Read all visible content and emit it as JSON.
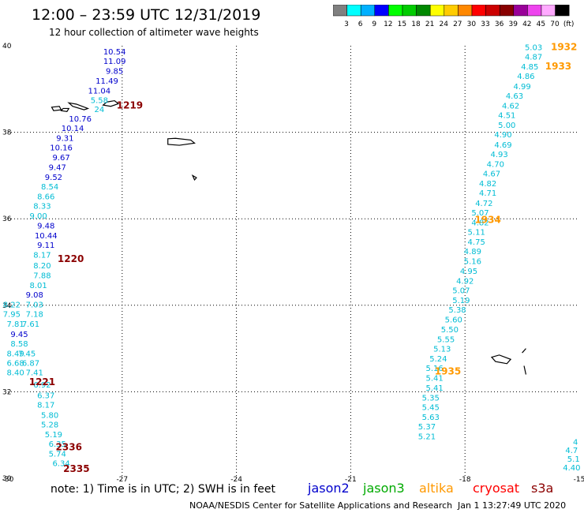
{
  "header": {
    "title": "12:00 – 23:59 UTC 12/31/2019",
    "subtitle": "12 hour collection of altimeter wave heights"
  },
  "colorbar": {
    "colors": [
      "#808080",
      "#00ffff",
      "#00b0ff",
      "#0000ff",
      "#00ff00",
      "#00cc00",
      "#008800",
      "#ffff00",
      "#ffcc00",
      "#ff8800",
      "#ff0000",
      "#cc0000",
      "#880000",
      "#990099",
      "#ee44ee",
      "#ffaaff",
      "#000000"
    ],
    "labels": [
      "3",
      "6",
      "9",
      "12",
      "15",
      "18",
      "21",
      "24",
      "27",
      "30",
      "33",
      "36",
      "39",
      "42",
      "45",
      "70",
      "(ft)"
    ]
  },
  "chart_data": {
    "type": "scatter",
    "title": "12 hour collection of altimeter wave heights",
    "x_ticks": [
      "-30",
      "-27",
      "-24",
      "-21",
      "-18",
      "-15"
    ],
    "y_ticks": [
      "40",
      "38",
      "36",
      "34",
      "32",
      "30"
    ],
    "xlim": [
      -30,
      -15
    ],
    "ylim": [
      30,
      40
    ],
    "grid": true,
    "time_labels": [
      {
        "text": "1219",
        "lon": -26.8,
        "lat": 38.55,
        "color": "#8b0000"
      },
      {
        "text": "1220",
        "lon": -28.35,
        "lat": 35.0,
        "color": "#8b0000"
      },
      {
        "text": "1221",
        "lon": -29.1,
        "lat": 32.15,
        "color": "#8b0000"
      },
      {
        "text": "2336",
        "lon": -28.4,
        "lat": 30.65,
        "color": "#8b0000"
      },
      {
        "text": "2335",
        "lon": -28.2,
        "lat": 30.15,
        "color": "#8b0000"
      },
      {
        "text": "1932",
        "lon": -15.4,
        "lat": 39.9,
        "color": "#ff9900"
      },
      {
        "text": "1933",
        "lon": -15.55,
        "lat": 39.45,
        "color": "#ff9900"
      },
      {
        "text": "1934",
        "lon": -17.4,
        "lat": 35.9,
        "color": "#ff9900"
      },
      {
        "text": "1935",
        "lon": -18.45,
        "lat": 32.4,
        "color": "#ff9900"
      }
    ],
    "series": [
      {
        "points": [
          {
            "lon": -27.2,
            "lat": 39.8,
            "v": "10.54",
            "c": "#0000cc"
          },
          {
            "lon": -27.2,
            "lat": 39.58,
            "v": "11.09",
            "c": "#0000cc"
          },
          {
            "lon": -27.2,
            "lat": 39.35,
            "v": "9.85",
            "c": "#0000cc"
          },
          {
            "lon": -27.4,
            "lat": 39.12,
            "v": "11.49",
            "c": "#0000cc"
          },
          {
            "lon": -27.6,
            "lat": 38.9,
            "v": "11.04",
            "c": "#0000cc"
          },
          {
            "lon": -27.6,
            "lat": 38.68,
            "v": "5.58",
            "c": "#00bcd4"
          },
          {
            "lon": -27.6,
            "lat": 38.47,
            "v": "24",
            "c": "#00bcd4"
          },
          {
            "lon": -28.1,
            "lat": 38.25,
            "v": "10.76",
            "c": "#0000cc"
          },
          {
            "lon": -28.3,
            "lat": 38.03,
            "v": "10.14",
            "c": "#0000cc"
          },
          {
            "lon": -28.5,
            "lat": 37.8,
            "v": "9.31",
            "c": "#0000cc"
          },
          {
            "lon": -28.6,
            "lat": 37.58,
            "v": "10.16",
            "c": "#0000cc"
          },
          {
            "lon": -28.6,
            "lat": 37.35,
            "v": "9.67",
            "c": "#0000cc"
          },
          {
            "lon": -28.7,
            "lat": 37.13,
            "v": "9.47",
            "c": "#0000cc"
          },
          {
            "lon": -28.8,
            "lat": 36.9,
            "v": "9.52",
            "c": "#0000cc"
          },
          {
            "lon": -28.9,
            "lat": 36.68,
            "v": "8.54",
            "c": "#00bcd4"
          },
          {
            "lon": -29.0,
            "lat": 36.45,
            "v": "8.66",
            "c": "#00bcd4"
          },
          {
            "lon": -29.1,
            "lat": 36.23,
            "v": "8.33",
            "c": "#00bcd4"
          },
          {
            "lon": -29.2,
            "lat": 36.0,
            "v": "9.00",
            "c": "#00bcd4"
          },
          {
            "lon": -29.0,
            "lat": 35.78,
            "v": "9.48",
            "c": "#0000cc"
          },
          {
            "lon": -29.0,
            "lat": 35.55,
            "v": "10.44",
            "c": "#0000cc"
          },
          {
            "lon": -29.0,
            "lat": 35.33,
            "v": "9.11",
            "c": "#0000cc"
          },
          {
            "lon": -29.1,
            "lat": 35.1,
            "v": "8.17",
            "c": "#00bcd4"
          },
          {
            "lon": -29.1,
            "lat": 34.85,
            "v": "8.20",
            "c": "#00bcd4"
          },
          {
            "lon": -29.1,
            "lat": 34.63,
            "v": "7.88",
            "c": "#00bcd4"
          },
          {
            "lon": -29.2,
            "lat": 34.4,
            "v": "8.01",
            "c": "#00bcd4"
          },
          {
            "lon": -29.3,
            "lat": 34.18,
            "v": "9.08",
            "c": "#0000cc"
          },
          {
            "lon": -29.9,
            "lat": 33.95,
            "v": "8.22",
            "c": "#00bcd4"
          },
          {
            "lon": -29.3,
            "lat": 33.95,
            "v": "7.03",
            "c": "#00bcd4"
          },
          {
            "lon": -29.9,
            "lat": 33.73,
            "v": "7.95",
            "c": "#00bcd4"
          },
          {
            "lon": -29.3,
            "lat": 33.73,
            "v": "7.18",
            "c": "#00bcd4"
          },
          {
            "lon": -29.8,
            "lat": 33.5,
            "v": "7.81",
            "c": "#00bcd4"
          },
          {
            "lon": -29.4,
            "lat": 33.5,
            "v": "7.61",
            "c": "#00bcd4"
          },
          {
            "lon": -29.7,
            "lat": 33.27,
            "v": "9.45",
            "c": "#0000cc"
          },
          {
            "lon": -29.7,
            "lat": 33.05,
            "v": "8.58",
            "c": "#00bcd4"
          },
          {
            "lon": -29.8,
            "lat": 32.82,
            "v": "8.49",
            "c": "#00bcd4"
          },
          {
            "lon": -29.5,
            "lat": 32.82,
            "v": "7.45",
            "c": "#00bcd4"
          },
          {
            "lon": -29.8,
            "lat": 32.6,
            "v": "6.68",
            "c": "#00bcd4"
          },
          {
            "lon": -29.4,
            "lat": 32.6,
            "v": "6.87",
            "c": "#00bcd4"
          },
          {
            "lon": -29.8,
            "lat": 32.38,
            "v": "8.40",
            "c": "#00bcd4"
          },
          {
            "lon": -29.3,
            "lat": 32.38,
            "v": "7.41",
            "c": "#00bcd4"
          },
          {
            "lon": -29.1,
            "lat": 32.1,
            "v": "6.92",
            "c": "#00bcd4"
          },
          {
            "lon": -29.0,
            "lat": 31.85,
            "v": "6.37",
            "c": "#00bcd4"
          },
          {
            "lon": -29.0,
            "lat": 31.63,
            "v": "8.17",
            "c": "#00bcd4"
          },
          {
            "lon": -28.9,
            "lat": 31.4,
            "v": "5.80",
            "c": "#00bcd4"
          },
          {
            "lon": -28.9,
            "lat": 31.18,
            "v": "5.28",
            "c": "#00bcd4"
          },
          {
            "lon": -28.8,
            "lat": 30.95,
            "v": "5.19",
            "c": "#00bcd4"
          },
          {
            "lon": -28.7,
            "lat": 30.73,
            "v": "6.35",
            "c": "#00bcd4"
          },
          {
            "lon": -28.7,
            "lat": 30.5,
            "v": "5.74",
            "c": "#00bcd4"
          },
          {
            "lon": -28.6,
            "lat": 30.28,
            "v": "6.34",
            "c": "#00bcd4"
          }
        ]
      },
      {
        "points": [
          {
            "lon": -16.2,
            "lat": 39.9,
            "v": "5.03",
            "c": "#00bcd4"
          },
          {
            "lon": -16.2,
            "lat": 39.68,
            "v": "4.87",
            "c": "#00bcd4"
          },
          {
            "lon": -16.3,
            "lat": 39.45,
            "v": "4.85",
            "c": "#00bcd4"
          },
          {
            "lon": -16.4,
            "lat": 39.23,
            "v": "4.86",
            "c": "#00bcd4"
          },
          {
            "lon": -16.5,
            "lat": 39.0,
            "v": "4.99",
            "c": "#00bcd4"
          },
          {
            "lon": -16.7,
            "lat": 38.78,
            "v": "4.63",
            "c": "#00bcd4"
          },
          {
            "lon": -16.8,
            "lat": 38.55,
            "v": "4.62",
            "c": "#00bcd4"
          },
          {
            "lon": -16.9,
            "lat": 38.33,
            "v": "4.51",
            "c": "#00bcd4"
          },
          {
            "lon": -16.9,
            "lat": 38.1,
            "v": "5.00",
            "c": "#00bcd4"
          },
          {
            "lon": -17.0,
            "lat": 37.88,
            "v": "4.90",
            "c": "#00bcd4"
          },
          {
            "lon": -17.0,
            "lat": 37.65,
            "v": "4.69",
            "c": "#00bcd4"
          },
          {
            "lon": -17.1,
            "lat": 37.43,
            "v": "4.93",
            "c": "#00bcd4"
          },
          {
            "lon": -17.2,
            "lat": 37.2,
            "v": "4.70",
            "c": "#00bcd4"
          },
          {
            "lon": -17.3,
            "lat": 36.98,
            "v": "4.67",
            "c": "#00bcd4"
          },
          {
            "lon": -17.4,
            "lat": 36.75,
            "v": "4.82",
            "c": "#00bcd4"
          },
          {
            "lon": -17.4,
            "lat": 36.53,
            "v": "4.71",
            "c": "#00bcd4"
          },
          {
            "lon": -17.5,
            "lat": 36.3,
            "v": "4.72",
            "c": "#00bcd4"
          },
          {
            "lon": -17.6,
            "lat": 36.08,
            "v": "5.07",
            "c": "#00bcd4"
          },
          {
            "lon": -17.6,
            "lat": 35.85,
            "v": "4.82",
            "c": "#00bcd4"
          },
          {
            "lon": -17.7,
            "lat": 35.63,
            "v": "5.11",
            "c": "#00bcd4"
          },
          {
            "lon": -17.7,
            "lat": 35.4,
            "v": "4.75",
            "c": "#00bcd4"
          },
          {
            "lon": -17.8,
            "lat": 35.18,
            "v": "4.89",
            "c": "#00bcd4"
          },
          {
            "lon": -17.8,
            "lat": 34.95,
            "v": "5.16",
            "c": "#00bcd4"
          },
          {
            "lon": -17.9,
            "lat": 34.73,
            "v": "4.95",
            "c": "#00bcd4"
          },
          {
            "lon": -18.0,
            "lat": 34.5,
            "v": "4.92",
            "c": "#00bcd4"
          },
          {
            "lon": -18.1,
            "lat": 34.28,
            "v": "5.07",
            "c": "#00bcd4"
          },
          {
            "lon": -18.1,
            "lat": 34.05,
            "v": "5.19",
            "c": "#00bcd4"
          },
          {
            "lon": -18.2,
            "lat": 33.83,
            "v": "5.38",
            "c": "#00bcd4"
          },
          {
            "lon": -18.3,
            "lat": 33.6,
            "v": "5.60",
            "c": "#00bcd4"
          },
          {
            "lon": -18.4,
            "lat": 33.38,
            "v": "5.50",
            "c": "#00bcd4"
          },
          {
            "lon": -18.5,
            "lat": 33.15,
            "v": "5.55",
            "c": "#00bcd4"
          },
          {
            "lon": -18.6,
            "lat": 32.93,
            "v": "5.13",
            "c": "#00bcd4"
          },
          {
            "lon": -18.7,
            "lat": 32.7,
            "v": "5.24",
            "c": "#00bcd4"
          },
          {
            "lon": -18.8,
            "lat": 32.48,
            "v": "5.16",
            "c": "#00bcd4"
          },
          {
            "lon": -18.8,
            "lat": 32.25,
            "v": "5.41",
            "c": "#00bcd4"
          },
          {
            "lon": -18.8,
            "lat": 32.03,
            "v": "5.41",
            "c": "#00bcd4"
          },
          {
            "lon": -18.9,
            "lat": 31.8,
            "v": "5.35",
            "c": "#00bcd4"
          },
          {
            "lon": -18.9,
            "lat": 31.58,
            "v": "5.45",
            "c": "#00bcd4"
          },
          {
            "lon": -18.9,
            "lat": 31.35,
            "v": "5.63",
            "c": "#00bcd4"
          },
          {
            "lon": -19.0,
            "lat": 31.13,
            "v": "5.37",
            "c": "#00bcd4"
          },
          {
            "lon": -19.0,
            "lat": 30.9,
            "v": "5.21",
            "c": "#00bcd4"
          }
        ]
      },
      {
        "points": [
          {
            "lon": -15.1,
            "lat": 30.78,
            "v": "4",
            "c": "#00bcd4"
          },
          {
            "lon": -15.2,
            "lat": 30.58,
            "v": "4.7",
            "c": "#00bcd4"
          },
          {
            "lon": -15.15,
            "lat": 30.38,
            "v": "5.1",
            "c": "#00bcd4"
          },
          {
            "lon": -15.2,
            "lat": 30.18,
            "v": "4.40",
            "c": "#00bcd4"
          }
        ]
      }
    ],
    "islands": [
      {
        "lon": [
          -27.4,
          -27.2,
          -27.1,
          -27.3,
          -27.5
        ],
        "lat": [
          38.7,
          38.73,
          38.66,
          38.6,
          38.63
        ]
      },
      {
        "lon": [
          -28.4,
          -28.2,
          -27.9,
          -28.0,
          -28.3
        ],
        "lat": [
          38.68,
          38.65,
          38.55,
          38.52,
          38.6
        ]
      },
      {
        "lon": [
          -28.85,
          -28.65,
          -28.6,
          -28.8
        ],
        "lat": [
          38.58,
          38.6,
          38.52,
          38.5
        ]
      },
      {
        "lon": [
          -28.55,
          -28.4,
          -28.45,
          -28.6
        ],
        "lat": [
          38.55,
          38.55,
          38.48,
          38.5
        ]
      },
      {
        "lon": [
          -25.8,
          -25.6,
          -25.2,
          -25.1,
          -25.5,
          -25.8
        ],
        "lat": [
          37.85,
          37.86,
          37.82,
          37.75,
          37.7,
          37.72
        ]
      },
      {
        "lon": [
          -25.15,
          -25.05,
          -25.1
        ],
        "lat": [
          37.0,
          36.95,
          36.9
        ]
      },
      {
        "lon": [
          -17.3,
          -17.1,
          -16.8,
          -16.9,
          -17.2
        ],
        "lat": [
          32.8,
          32.85,
          32.75,
          32.65,
          32.7
        ]
      },
      {
        "lon": [
          -16.5,
          -16.4
        ],
        "lat": [
          32.9,
          33.0
        ]
      },
      {
        "lon": [
          -16.45,
          -16.4
        ],
        "lat": [
          32.6,
          32.4
        ]
      }
    ]
  },
  "footer": {
    "note": "note:  1) Time is in UTC;  2) SWH is in feet",
    "missions": [
      {
        "name": "jason2",
        "color": "#0000cc"
      },
      {
        "name": "jason3",
        "color": "#00aa00"
      },
      {
        "name": "altika",
        "color": "#ff9900"
      },
      {
        "name": "cryosat",
        "color": "#ff0000"
      },
      {
        "name": "s3a",
        "color": "#8b0000"
      }
    ],
    "credit": "NOAA/NESDIS Center for Satellite Applications and Research",
    "timestamp": "Jan  1 13:27:49 UTC 2020"
  }
}
